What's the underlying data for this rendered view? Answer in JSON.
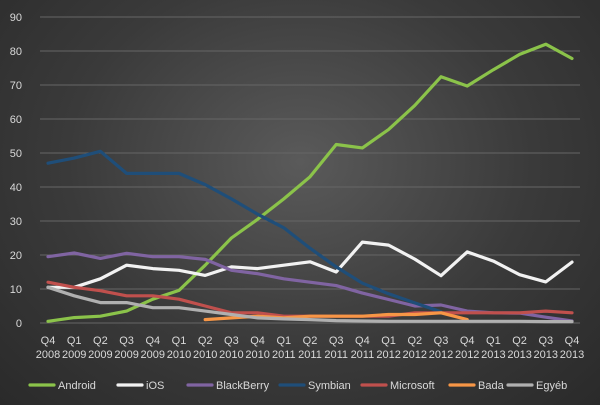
{
  "chart_data": {
    "type": "line",
    "x_ticks": [
      [
        "Q4",
        "2008"
      ],
      [
        "Q1",
        "2009"
      ],
      [
        "Q2",
        "2009"
      ],
      [
        "Q3",
        "2009"
      ],
      [
        "Q4",
        "2009"
      ],
      [
        "Q1",
        "2010"
      ],
      [
        "Q2",
        "2010"
      ],
      [
        "Q3",
        "2010"
      ],
      [
        "Q4",
        "2010"
      ],
      [
        "Q1",
        "2011"
      ],
      [
        "Q2",
        "2011"
      ],
      [
        "Q3",
        "2011"
      ],
      [
        "Q4",
        "2011"
      ],
      [
        "Q1",
        "2012"
      ],
      [
        "Q2",
        "2012"
      ],
      [
        "Q3",
        "2012"
      ],
      [
        "Q4",
        "2012"
      ],
      [
        "Q1",
        "2013"
      ],
      [
        "Q2",
        "2013"
      ],
      [
        "Q3",
        "2013"
      ],
      [
        "Q4",
        "2013"
      ]
    ],
    "y_ticks": [
      0,
      10,
      20,
      30,
      40,
      50,
      60,
      70,
      80,
      90
    ],
    "ylim": [
      0,
      90
    ],
    "grid": true,
    "legend_position": "bottom",
    "series": [
      {
        "name": "Android",
        "color": "#8bc34a",
        "values": [
          0.5,
          1.6,
          2,
          3.5,
          7,
          9.6,
          17,
          25,
          30.5,
          36.5,
          43,
          52.5,
          51.5,
          56.9,
          64,
          72.4,
          69.7,
          74.5,
          79,
          82,
          77.8
        ]
      },
      {
        "name": "iOS",
        "color": "#f2f2f2",
        "values": [
          10.5,
          10.5,
          13,
          17,
          16,
          15.5,
          14,
          16.5,
          16,
          17,
          18,
          15,
          23.8,
          22.9,
          18.8,
          13.9,
          20.9,
          18.2,
          14.2,
          12.1,
          17.9
        ]
      },
      {
        "name": "BlackBerry",
        "color": "#8064a2",
        "values": [
          19.5,
          20.6,
          19,
          20.5,
          19.5,
          19.5,
          18.7,
          15.5,
          14.5,
          13,
          12,
          11,
          8.8,
          6.9,
          5,
          5.3,
          3.5,
          3,
          2.9,
          1.7,
          0.6
        ]
      },
      {
        "name": "Symbian",
        "color": "#1f4e79",
        "values": [
          47,
          48.5,
          50.5,
          44,
          44,
          44,
          40.7,
          36.5,
          32,
          28,
          22,
          16.5,
          11.7,
          8.6,
          5.9,
          3.3,
          null,
          null,
          null,
          null,
          null
        ]
      },
      {
        "name": "Microsoft",
        "color": "#c0504d",
        "values": [
          12,
          10.5,
          9.5,
          8,
          8,
          7,
          5,
          3,
          3,
          2,
          2,
          2,
          2,
          2,
          3,
          3,
          3,
          3,
          3,
          3.5,
          3
        ]
      },
      {
        "name": "Bada",
        "color": "#f79646",
        "values": [
          null,
          null,
          null,
          null,
          null,
          null,
          1,
          1.5,
          2,
          1.5,
          2,
          2,
          2,
          2.5,
          2.5,
          3,
          1,
          null,
          null,
          null,
          null
        ]
      },
      {
        "name": "Egyéb",
        "color": "#b0b0b0",
        "values": [
          10.5,
          8,
          6,
          6,
          4.5,
          4.5,
          3.5,
          2.5,
          1.5,
          1.2,
          1,
          0.7,
          0.6,
          0.5,
          0.5,
          0.5,
          0.5,
          0.5,
          0.5,
          0.4,
          0.4
        ]
      }
    ]
  }
}
